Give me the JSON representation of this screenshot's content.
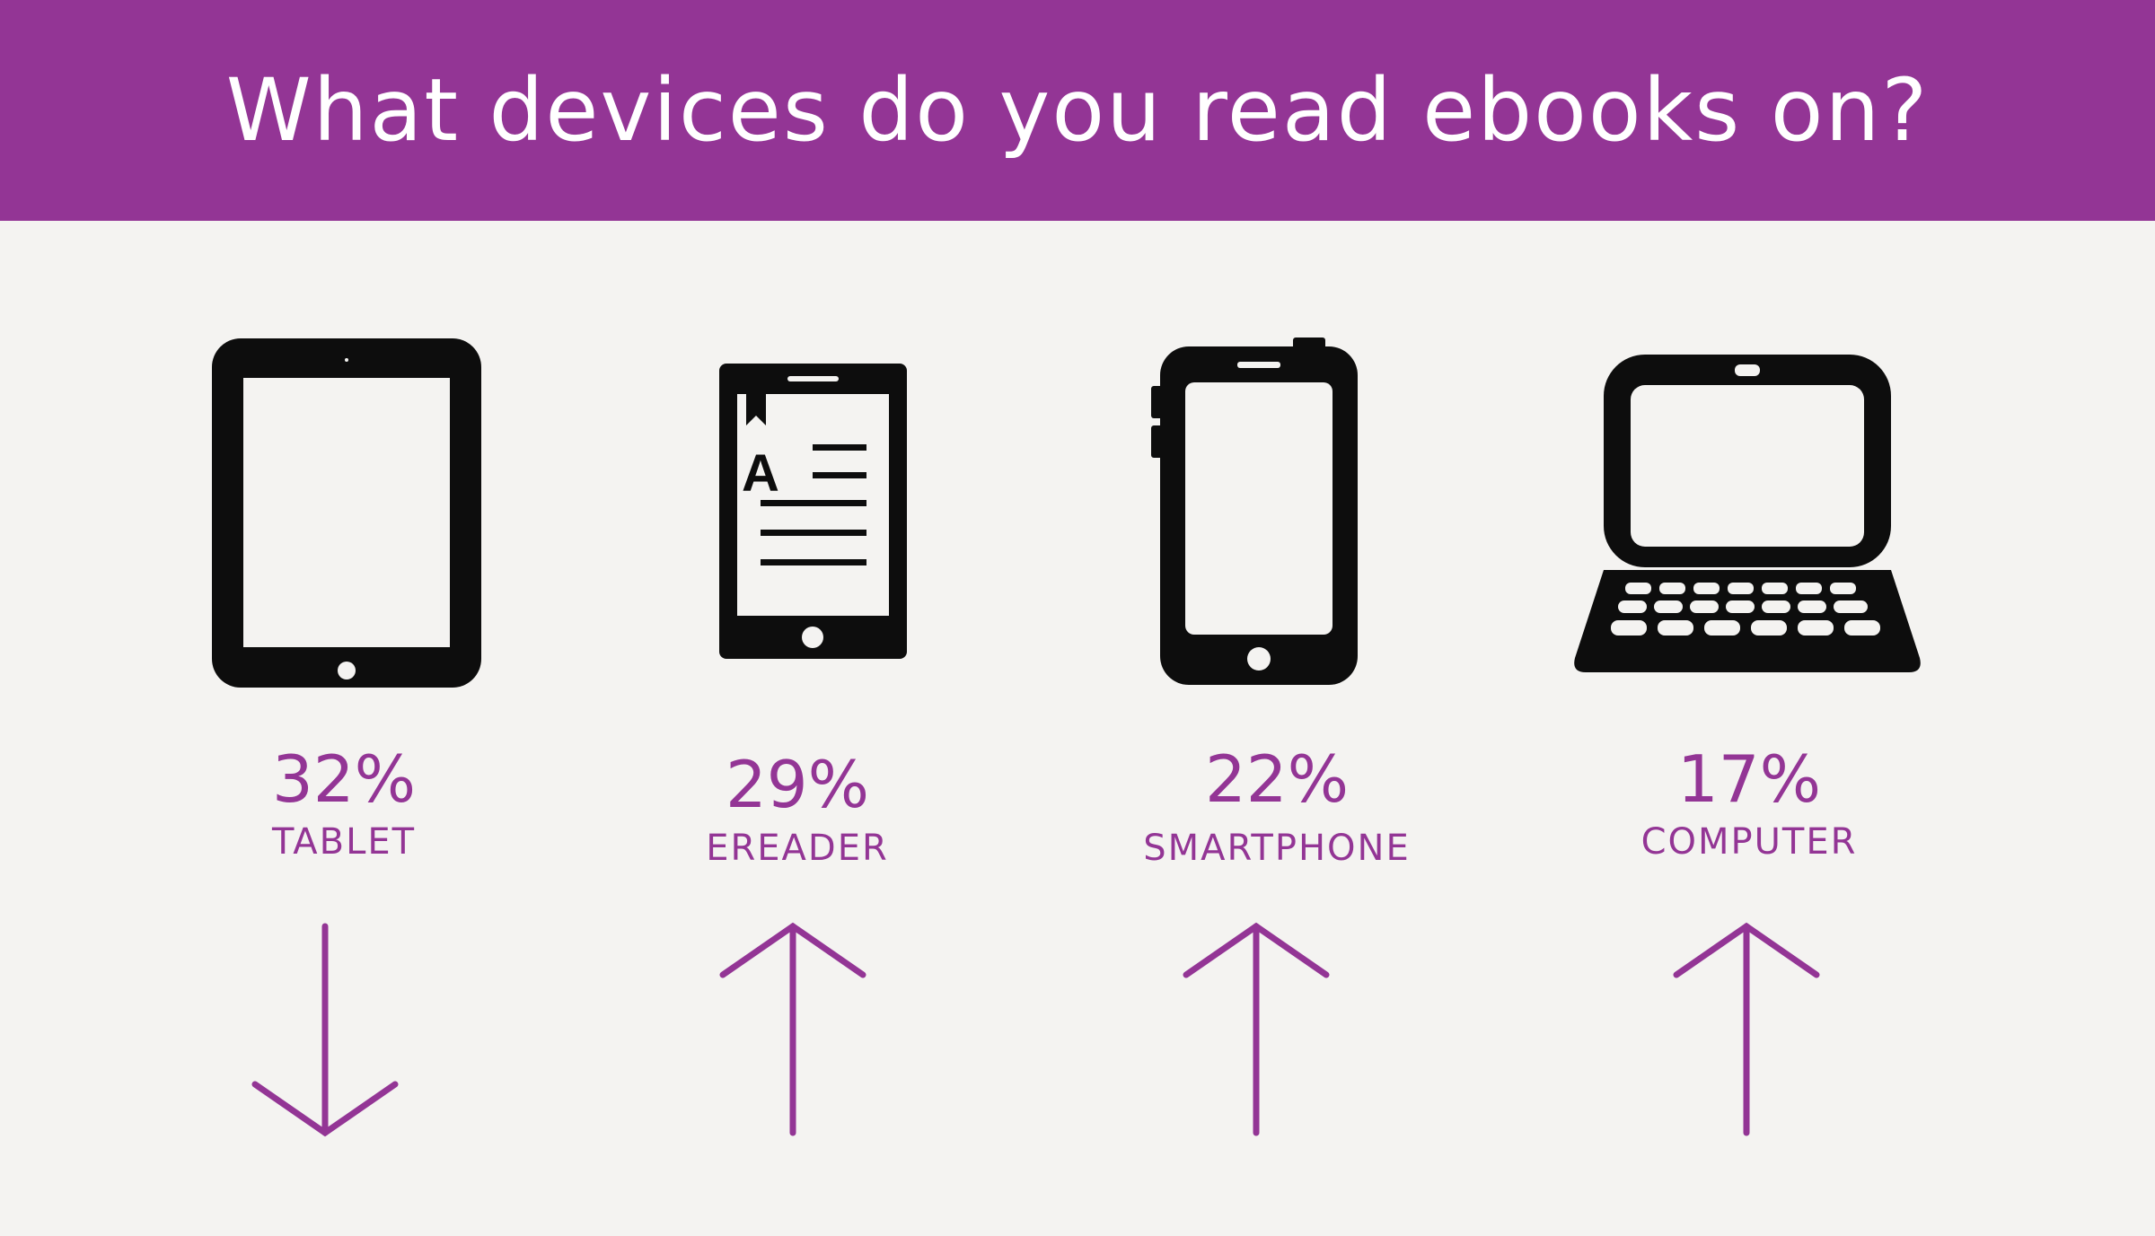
{
  "title": "What devices do you read ebooks on?",
  "colors": {
    "accent": "#933595",
    "icon": "#0d0d0d",
    "background": "#f4f3f1"
  },
  "chart_data": {
    "type": "table",
    "categories": [
      "TABLET",
      "EREADER",
      "SMARTPHONE",
      "COMPUTER"
    ],
    "values": [
      32,
      29,
      22,
      17
    ],
    "unit": "%",
    "value_labels": [
      "32%",
      "29%",
      "22%",
      "17%"
    ],
    "trends": [
      "down",
      "up",
      "up",
      "up"
    ],
    "icons": [
      "tablet-icon",
      "ereader-icon",
      "smartphone-icon",
      "laptop-icon"
    ]
  },
  "ereader_glyph": "A"
}
